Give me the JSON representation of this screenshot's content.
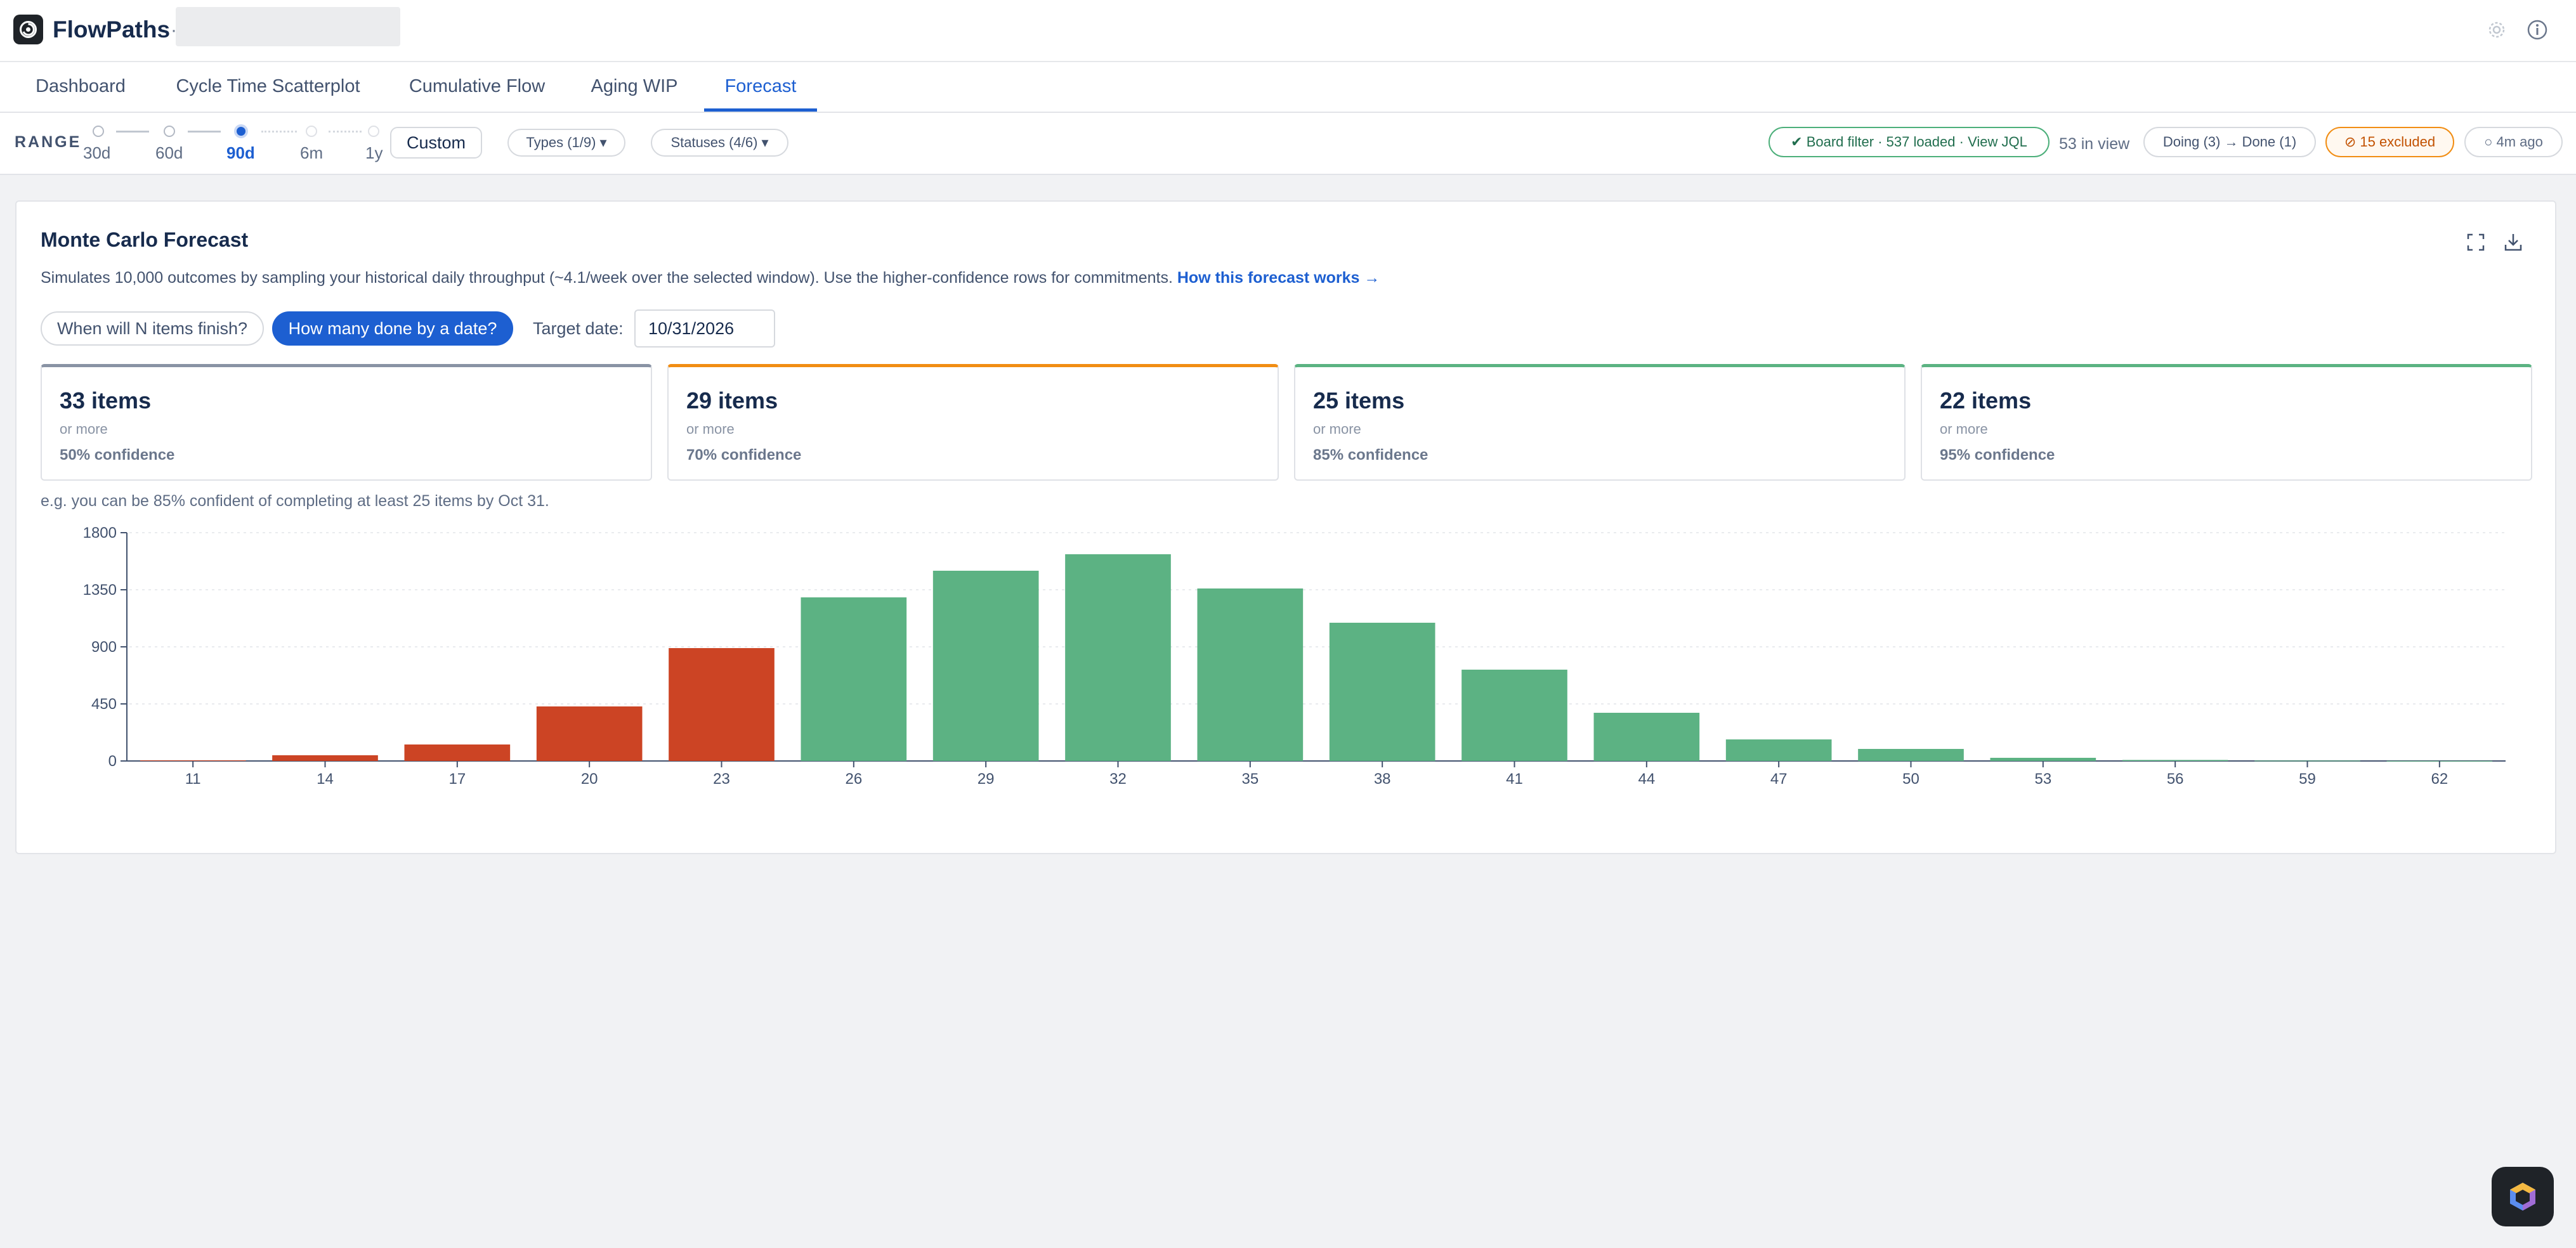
{
  "app": {
    "title": "FlowPaths",
    "separator": "·"
  },
  "tabs": [
    {
      "label": "Dashboard",
      "active": false
    },
    {
      "label": "Cycle Time Scatterplot",
      "active": false
    },
    {
      "label": "Cumulative Flow",
      "active": false
    },
    {
      "label": "Aging WIP",
      "active": false
    },
    {
      "label": "Forecast",
      "active": true
    }
  ],
  "toolbar": {
    "range_label": "RANGE",
    "ranges": [
      "30d",
      "60d",
      "90d",
      "6m",
      "1y"
    ],
    "selected_range": "90d",
    "custom_label": "Custom",
    "types_label": "Types (1/9) ▾",
    "statuses_label": "Statuses (4/6) ▾",
    "board_filter_label": "✔ Board filter · 537 loaded · View JQL",
    "in_view_label": "53 in view",
    "doing_done_label": "Doing (3) → Done (1)",
    "excluded_label": "⊘ 15 excluded",
    "updated_label": "○ 4m ago"
  },
  "forecast": {
    "title": "Monte Carlo Forecast",
    "description": "Simulates 10,000 outcomes by sampling your historical daily throughput (~4.1/week over the selected window). Use the higher-confidence rows for commitments.",
    "link_label": "How this forecast works →",
    "mode_n_label": "When will N items finish?",
    "mode_date_label": "How many done by a date?",
    "target_label": "Target date:",
    "target_value": "10/31/2026",
    "cards": [
      {
        "items": "33 items",
        "more": "or more",
        "confidence": "50% confidence",
        "accent": "#8993a4"
      },
      {
        "items": "29 items",
        "more": "or more",
        "confidence": "70% confidence",
        "accent": "#f18d13"
      },
      {
        "items": "25 items",
        "more": "or more",
        "confidence": "85% confidence",
        "accent": "#5bb382"
      },
      {
        "items": "22 items",
        "more": "or more",
        "confidence": "95% confidence",
        "accent": "#5bb382"
      }
    ],
    "example": "e.g. you can be 85% confident of completing at least 25 items by Oct 31."
  },
  "colors": {
    "accent": "#1d5fd1",
    "below_threshold": "#cc4424",
    "above_threshold": "#5cb283"
  },
  "chart_data": {
    "type": "bar",
    "categories": [
      "11",
      "14",
      "17",
      "20",
      "23",
      "26",
      "29",
      "32",
      "35",
      "38",
      "41",
      "44",
      "47",
      "50",
      "53",
      "56",
      "59",
      "62"
    ],
    "values": [
      5,
      45,
      130,
      430,
      890,
      1290,
      1500,
      1630,
      1360,
      1090,
      720,
      380,
      170,
      95,
      25,
      8,
      3,
      1
    ],
    "threshold_category": "23",
    "yticks": [
      0,
      450,
      900,
      1350,
      1800
    ],
    "ylim": [
      0,
      1800
    ],
    "xlabel": "",
    "ylabel": "",
    "title": "",
    "grid": true,
    "legend": "none"
  },
  "icons": {
    "logo": "flowpaths-logo-icon",
    "settings": "gear-icon",
    "info": "info-icon",
    "expand": "expand-icon",
    "download": "download-icon",
    "assistant": "assistant-icon"
  }
}
